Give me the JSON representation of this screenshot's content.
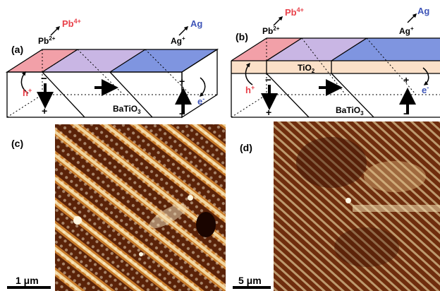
{
  "panels": {
    "a": {
      "label": "(a)",
      "substrate": "BaTiO",
      "substrate_sub": "3",
      "ion_left": "Pb",
      "ion_left_sup": "2+",
      "product_left": "Pb",
      "product_left_sup": "4+",
      "ion_right": "Ag",
      "ion_right_sup": "+",
      "product_right": "Ag",
      "hole": "h",
      "hole_sup": "+",
      "electron": "e",
      "electron_sup": "-",
      "minus": "−",
      "plus": "+"
    },
    "b": {
      "label": "(b)",
      "substrate": "BaTiO",
      "substrate_sub": "3",
      "film": "TiO",
      "film_sub": "2",
      "ion_left": "Pb",
      "ion_left_sup": "2+",
      "product_left": "Pb",
      "product_left_sup": "4+",
      "ion_right": "Ag",
      "ion_right_sup": "+",
      "product_right": "Ag",
      "hole": "h",
      "hole_sup": "+",
      "electron": "e",
      "electron_sup": "-",
      "minus": "−",
      "plus": "+"
    },
    "c": {
      "label": "(c)",
      "scale_bar": "1 μm"
    },
    "d": {
      "label": "(d)",
      "scale_bar": "5 μm"
    }
  },
  "colors": {
    "red_face": "#f2a0a8",
    "purple_face": "#c9b6e4",
    "blue_face": "#7f95e0",
    "tio2_layer": "#fbe0c8",
    "red_text": "#e8414a",
    "blue_text": "#3f55b8",
    "afm_dark": "#4a1a06",
    "afm_light": "#f4e2b8"
  }
}
